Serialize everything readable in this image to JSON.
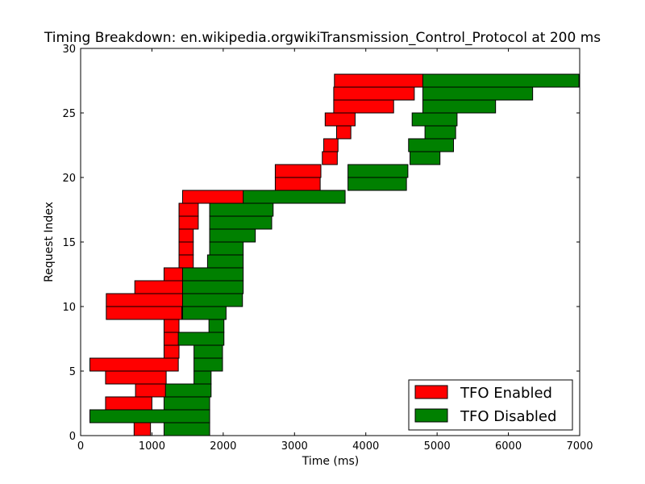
{
  "chart_data": {
    "type": "bar",
    "orientation": "horizontal-floating",
    "title": "Timing Breakdown: en.wikipedia.orgwikiTransmission_Control_Protocol at 200 ms",
    "xlabel": "Time (ms)",
    "ylabel": "Request Index",
    "xlim": [
      0,
      7000
    ],
    "ylim": [
      0,
      30
    ],
    "x_ticks": [
      0,
      1000,
      2000,
      3000,
      4000,
      5000,
      6000,
      7000
    ],
    "y_ticks": [
      0,
      5,
      10,
      15,
      20,
      25,
      30
    ],
    "grid": false,
    "legend_position": "lower-right",
    "series": [
      {
        "name": "TFO Enabled",
        "color": "#ff0000",
        "bars": [
          {
            "index": 0,
            "start": 750,
            "end": 980
          },
          {
            "index": 1,
            "start": 750,
            "end": 980
          },
          {
            "index": 2,
            "start": 350,
            "end": 1000
          },
          {
            "index": 3,
            "start": 770,
            "end": 1200
          },
          {
            "index": 4,
            "start": 350,
            "end": 1200
          },
          {
            "index": 5,
            "start": 130,
            "end": 1370
          },
          {
            "index": 6,
            "start": 1170,
            "end": 1380
          },
          {
            "index": 7,
            "start": 1170,
            "end": 1380
          },
          {
            "index": 8,
            "start": 1170,
            "end": 1380
          },
          {
            "index": 9,
            "start": 360,
            "end": 1420
          },
          {
            "index": 10,
            "start": 360,
            "end": 1430
          },
          {
            "index": 11,
            "start": 760,
            "end": 1430
          },
          {
            "index": 12,
            "start": 1170,
            "end": 1430
          },
          {
            "index": 13,
            "start": 1380,
            "end": 1580
          },
          {
            "index": 14,
            "start": 1380,
            "end": 1580
          },
          {
            "index": 15,
            "start": 1380,
            "end": 1580
          },
          {
            "index": 16,
            "start": 1380,
            "end": 1650
          },
          {
            "index": 17,
            "start": 1380,
            "end": 1650
          },
          {
            "index": 18,
            "start": 1430,
            "end": 2700
          },
          {
            "index": 19,
            "start": 2730,
            "end": 3360
          },
          {
            "index": 20,
            "start": 2730,
            "end": 3370
          },
          {
            "index": 21,
            "start": 3390,
            "end": 3600
          },
          {
            "index": 22,
            "start": 3410,
            "end": 3610
          },
          {
            "index": 23,
            "start": 3590,
            "end": 3790
          },
          {
            "index": 24,
            "start": 3430,
            "end": 3850
          },
          {
            "index": 25,
            "start": 3550,
            "end": 4390
          },
          {
            "index": 26,
            "start": 3550,
            "end": 4680
          },
          {
            "index": 27,
            "start": 3560,
            "end": 5320
          }
        ]
      },
      {
        "name": "TFO Disabled",
        "color": "#008000",
        "bars": [
          {
            "index": 0,
            "start": 1170,
            "end": 1810
          },
          {
            "index": 1,
            "start": 130,
            "end": 1810
          },
          {
            "index": 2,
            "start": 1170,
            "end": 1810
          },
          {
            "index": 3,
            "start": 1190,
            "end": 1830
          },
          {
            "index": 4,
            "start": 1590,
            "end": 1830
          },
          {
            "index": 5,
            "start": 1590,
            "end": 1990
          },
          {
            "index": 6,
            "start": 1590,
            "end": 1990
          },
          {
            "index": 7,
            "start": 1370,
            "end": 2010
          },
          {
            "index": 8,
            "start": 1800,
            "end": 2010
          },
          {
            "index": 9,
            "start": 1430,
            "end": 2040
          },
          {
            "index": 10,
            "start": 1430,
            "end": 2270
          },
          {
            "index": 11,
            "start": 1430,
            "end": 2280
          },
          {
            "index": 12,
            "start": 1430,
            "end": 2280
          },
          {
            "index": 13,
            "start": 1780,
            "end": 2280
          },
          {
            "index": 14,
            "start": 1810,
            "end": 2280
          },
          {
            "index": 15,
            "start": 1810,
            "end": 2450
          },
          {
            "index": 16,
            "start": 1810,
            "end": 2680
          },
          {
            "index": 17,
            "start": 1810,
            "end": 2700
          },
          {
            "index": 18,
            "start": 2280,
            "end": 3710
          },
          {
            "index": 19,
            "start": 3750,
            "end": 4570
          },
          {
            "index": 20,
            "start": 3750,
            "end": 4590
          },
          {
            "index": 21,
            "start": 4620,
            "end": 5040
          },
          {
            "index": 22,
            "start": 4600,
            "end": 5230
          },
          {
            "index": 23,
            "start": 4830,
            "end": 5260
          },
          {
            "index": 24,
            "start": 4650,
            "end": 5280
          },
          {
            "index": 25,
            "start": 4800,
            "end": 5820
          },
          {
            "index": 26,
            "start": 4800,
            "end": 6340
          },
          {
            "index": 27,
            "start": 4800,
            "end": 6990
          }
        ]
      }
    ]
  }
}
